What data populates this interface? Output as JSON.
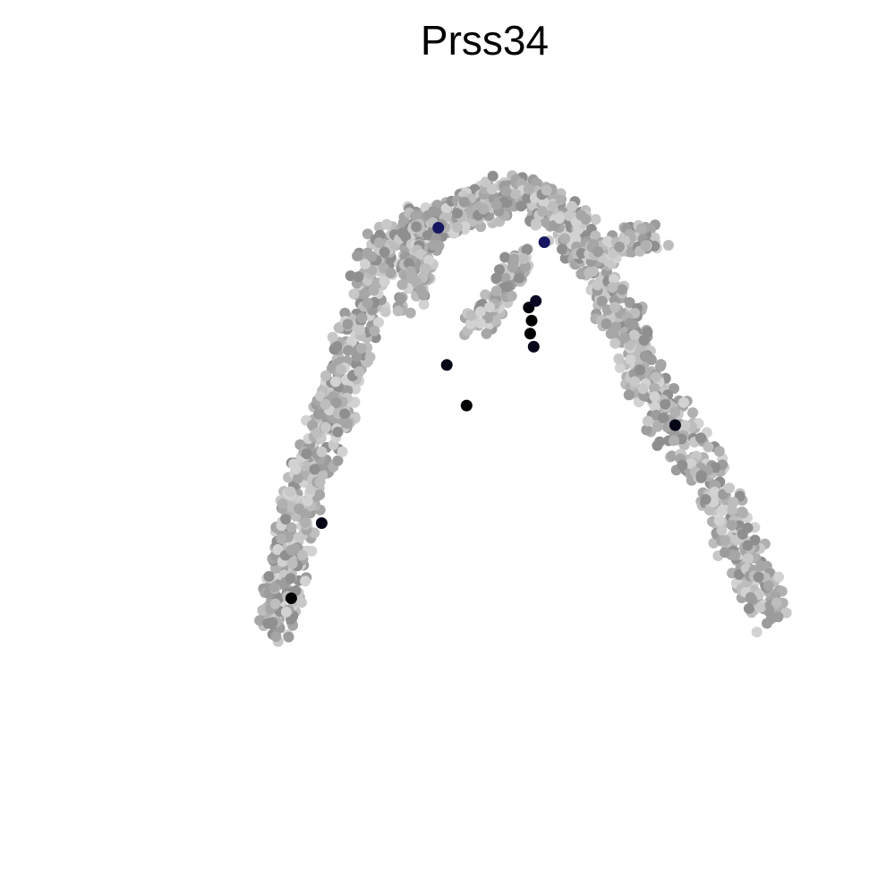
{
  "chart_data": {
    "type": "scatter",
    "title": "Prss34",
    "xlabel": "",
    "ylabel": "",
    "axes_visible": false,
    "grid": false,
    "legend": "none",
    "color_scale": {
      "low": "#c8c8c8",
      "mid": "#1a1a7a",
      "high": "#000000"
    },
    "background_color": "#ffffff",
    "x_range": [
      0,
      1
    ],
    "y_range": [
      0,
      1
    ],
    "backbone": [
      {
        "x": 0.2,
        "y": 0.19
      },
      {
        "x": 0.21,
        "y": 0.24
      },
      {
        "x": 0.22,
        "y": 0.3
      },
      {
        "x": 0.23,
        "y": 0.36
      },
      {
        "x": 0.245,
        "y": 0.42
      },
      {
        "x": 0.265,
        "y": 0.47
      },
      {
        "x": 0.285,
        "y": 0.53
      },
      {
        "x": 0.3,
        "y": 0.59
      },
      {
        "x": 0.32,
        "y": 0.66
      },
      {
        "x": 0.34,
        "y": 0.74
      },
      {
        "x": 0.37,
        "y": 0.79
      },
      {
        "x": 0.41,
        "y": 0.81
      },
      {
        "x": 0.46,
        "y": 0.83
      },
      {
        "x": 0.5,
        "y": 0.84
      },
      {
        "x": 0.54,
        "y": 0.86
      },
      {
        "x": 0.57,
        "y": 0.84
      },
      {
        "x": 0.61,
        "y": 0.81
      },
      {
        "x": 0.65,
        "y": 0.76
      },
      {
        "x": 0.67,
        "y": 0.7
      },
      {
        "x": 0.7,
        "y": 0.64
      },
      {
        "x": 0.72,
        "y": 0.58
      },
      {
        "x": 0.75,
        "y": 0.52
      },
      {
        "x": 0.79,
        "y": 0.46
      },
      {
        "x": 0.82,
        "y": 0.4
      },
      {
        "x": 0.85,
        "y": 0.33
      },
      {
        "x": 0.88,
        "y": 0.26
      },
      {
        "x": 0.9,
        "y": 0.21
      }
    ],
    "branches": [
      [
        {
          "x": 0.42,
          "y": 0.8
        },
        {
          "x": 0.4,
          "y": 0.74
        },
        {
          "x": 0.39,
          "y": 0.69
        }
      ],
      [
        {
          "x": 0.54,
          "y": 0.76
        },
        {
          "x": 0.52,
          "y": 0.7
        },
        {
          "x": 0.48,
          "y": 0.65
        }
      ],
      [
        {
          "x": 0.64,
          "y": 0.76
        },
        {
          "x": 0.69,
          "y": 0.78
        },
        {
          "x": 0.74,
          "y": 0.79
        }
      ],
      [
        {
          "x": 0.27,
          "y": 0.54
        },
        {
          "x": 0.3,
          "y": 0.5
        }
      ]
    ],
    "expressing_points": [
      {
        "x": 0.558,
        "y": 0.68,
        "value": 0.95
      },
      {
        "x": 0.56,
        "y": 0.64,
        "value": 1.0
      },
      {
        "x": 0.562,
        "y": 0.66,
        "value": 1.0
      },
      {
        "x": 0.565,
        "y": 0.62,
        "value": 0.9
      },
      {
        "x": 0.568,
        "y": 0.69,
        "value": 0.85
      },
      {
        "x": 0.58,
        "y": 0.78,
        "value": 0.6
      },
      {
        "x": 0.47,
        "y": 0.53,
        "value": 1.0
      },
      {
        "x": 0.265,
        "y": 0.35,
        "value": 0.9
      },
      {
        "x": 0.222,
        "y": 0.235,
        "value": 1.0
      },
      {
        "x": 0.765,
        "y": 0.5,
        "value": 0.9
      },
      {
        "x": 0.442,
        "y": 0.592,
        "value": 0.9
      },
      {
        "x": 0.43,
        "y": 0.802,
        "value": 0.6
      }
    ]
  }
}
